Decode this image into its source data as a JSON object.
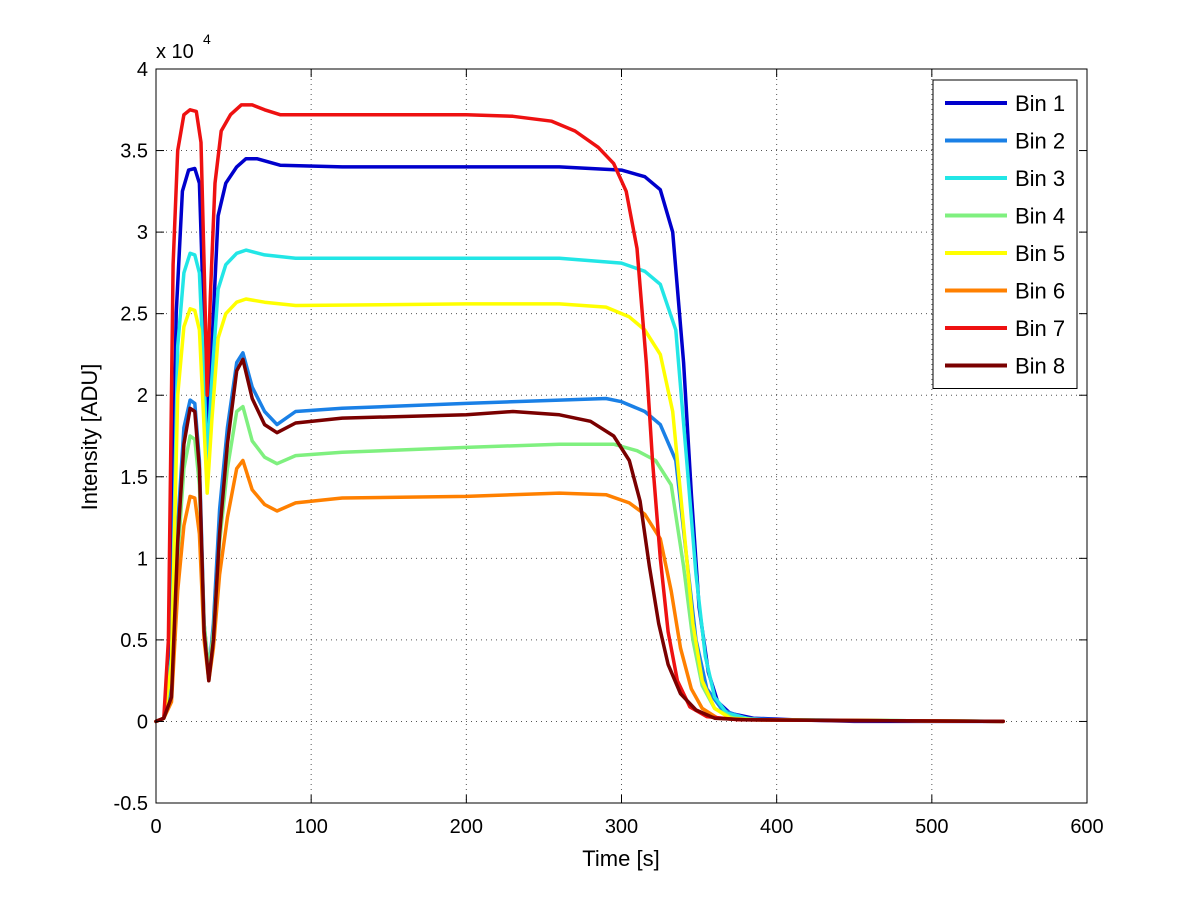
{
  "chart_data": {
    "type": "line",
    "title": "",
    "xlabel": "Time [s]",
    "ylabel": "Intensity [ADU]",
    "y_exponent_label": "x 10",
    "y_exponent_power": "4",
    "xlim": [
      0,
      600
    ],
    "ylim": [
      -0.5,
      4
    ],
    "xticks": [
      0,
      100,
      200,
      300,
      400,
      500,
      600
    ],
    "yticks": [
      -0.5,
      0,
      0.5,
      1,
      1.5,
      2,
      2.5,
      3,
      3.5,
      4
    ],
    "xtick_labels": [
      "0",
      "100",
      "200",
      "300",
      "400",
      "500",
      "600"
    ],
    "ytick_labels": [
      "-0.5",
      "0",
      "0.5",
      "1",
      "1.5",
      "2",
      "2.5",
      "3",
      "3.5",
      "4"
    ],
    "grid": true,
    "legend_position": "top-right",
    "series": [
      {
        "name": "Bin 1",
        "color": "#0000cc",
        "points": [
          [
            0,
            0
          ],
          [
            5,
            0.02
          ],
          [
            9,
            0.3
          ],
          [
            13,
            2.5
          ],
          [
            17,
            3.25
          ],
          [
            21,
            3.38
          ],
          [
            25,
            3.39
          ],
          [
            28,
            3.3
          ],
          [
            31,
            2.4
          ],
          [
            33,
            1.7
          ],
          [
            36,
            2.3
          ],
          [
            40,
            3.1
          ],
          [
            45,
            3.3
          ],
          [
            52,
            3.4
          ],
          [
            58,
            3.45
          ],
          [
            65,
            3.45
          ],
          [
            80,
            3.41
          ],
          [
            120,
            3.4
          ],
          [
            200,
            3.4
          ],
          [
            260,
            3.4
          ],
          [
            300,
            3.38
          ],
          [
            315,
            3.34
          ],
          [
            325,
            3.26
          ],
          [
            333,
            3.0
          ],
          [
            340,
            2.2
          ],
          [
            345,
            1.4
          ],
          [
            350,
            0.7
          ],
          [
            356,
            0.3
          ],
          [
            362,
            0.12
          ],
          [
            370,
            0.05
          ],
          [
            385,
            0.02
          ],
          [
            410,
            0.01
          ],
          [
            450,
            0
          ],
          [
            546,
            0
          ]
        ]
      },
      {
        "name": "Bin 2",
        "color": "#1a80e6",
        "points": [
          [
            0,
            0
          ],
          [
            5,
            0.02
          ],
          [
            10,
            0.2
          ],
          [
            14,
            1.2
          ],
          [
            18,
            1.8
          ],
          [
            22,
            1.97
          ],
          [
            25,
            1.95
          ],
          [
            28,
            1.6
          ],
          [
            31,
            0.6
          ],
          [
            34,
            0.3
          ],
          [
            37,
            0.6
          ],
          [
            41,
            1.3
          ],
          [
            46,
            1.8
          ],
          [
            52,
            2.2
          ],
          [
            56,
            2.26
          ],
          [
            62,
            2.05
          ],
          [
            70,
            1.9
          ],
          [
            78,
            1.82
          ],
          [
            90,
            1.9
          ],
          [
            120,
            1.92
          ],
          [
            200,
            1.95
          ],
          [
            260,
            1.97
          ],
          [
            290,
            1.98
          ],
          [
            300,
            1.96
          ],
          [
            315,
            1.9
          ],
          [
            325,
            1.82
          ],
          [
            335,
            1.6
          ],
          [
            342,
            1.0
          ],
          [
            348,
            0.5
          ],
          [
            355,
            0.2
          ],
          [
            365,
            0.07
          ],
          [
            380,
            0.02
          ],
          [
            400,
            0.01
          ],
          [
            546,
            0
          ]
        ]
      },
      {
        "name": "Bin 3",
        "color": "#22e6e6",
        "points": [
          [
            0,
            0
          ],
          [
            5,
            0.02
          ],
          [
            10,
            0.4
          ],
          [
            14,
            2.3
          ],
          [
            18,
            2.75
          ],
          [
            22,
            2.87
          ],
          [
            25,
            2.86
          ],
          [
            28,
            2.75
          ],
          [
            31,
            2.1
          ],
          [
            33,
            1.6
          ],
          [
            36,
            2.1
          ],
          [
            40,
            2.65
          ],
          [
            45,
            2.8
          ],
          [
            52,
            2.87
          ],
          [
            58,
            2.89
          ],
          [
            70,
            2.86
          ],
          [
            90,
            2.84
          ],
          [
            120,
            2.84
          ],
          [
            200,
            2.84
          ],
          [
            260,
            2.84
          ],
          [
            300,
            2.81
          ],
          [
            315,
            2.76
          ],
          [
            325,
            2.68
          ],
          [
            335,
            2.4
          ],
          [
            342,
            1.6
          ],
          [
            348,
            0.9
          ],
          [
            354,
            0.4
          ],
          [
            360,
            0.15
          ],
          [
            368,
            0.05
          ],
          [
            385,
            0.01
          ],
          [
            546,
            0
          ]
        ]
      },
      {
        "name": "Bin 4",
        "color": "#7ff07f",
        "points": [
          [
            0,
            0
          ],
          [
            5,
            0.02
          ],
          [
            10,
            0.15
          ],
          [
            14,
            1.0
          ],
          [
            18,
            1.55
          ],
          [
            22,
            1.75
          ],
          [
            25,
            1.73
          ],
          [
            28,
            1.45
          ],
          [
            31,
            0.6
          ],
          [
            34,
            0.3
          ],
          [
            37,
            0.55
          ],
          [
            41,
            1.1
          ],
          [
            46,
            1.55
          ],
          [
            52,
            1.9
          ],
          [
            56,
            1.93
          ],
          [
            62,
            1.72
          ],
          [
            70,
            1.62
          ],
          [
            78,
            1.58
          ],
          [
            90,
            1.63
          ],
          [
            120,
            1.65
          ],
          [
            200,
            1.68
          ],
          [
            260,
            1.7
          ],
          [
            295,
            1.7
          ],
          [
            310,
            1.66
          ],
          [
            322,
            1.6
          ],
          [
            332,
            1.45
          ],
          [
            340,
            0.95
          ],
          [
            346,
            0.5
          ],
          [
            352,
            0.22
          ],
          [
            360,
            0.08
          ],
          [
            372,
            0.02
          ],
          [
            390,
            0.01
          ],
          [
            546,
            0
          ]
        ]
      },
      {
        "name": "Bin 5",
        "color": "#ffff00",
        "points": [
          [
            0,
            0
          ],
          [
            5,
            0.02
          ],
          [
            10,
            0.35
          ],
          [
            14,
            2.0
          ],
          [
            18,
            2.42
          ],
          [
            22,
            2.53
          ],
          [
            25,
            2.52
          ],
          [
            28,
            2.4
          ],
          [
            31,
            1.8
          ],
          [
            33,
            1.4
          ],
          [
            36,
            1.85
          ],
          [
            40,
            2.35
          ],
          [
            45,
            2.5
          ],
          [
            52,
            2.57
          ],
          [
            58,
            2.59
          ],
          [
            70,
            2.57
          ],
          [
            90,
            2.55
          ],
          [
            200,
            2.56
          ],
          [
            260,
            2.56
          ],
          [
            290,
            2.54
          ],
          [
            305,
            2.48
          ],
          [
            315,
            2.4
          ],
          [
            325,
            2.25
          ],
          [
            333,
            1.9
          ],
          [
            340,
            1.2
          ],
          [
            346,
            0.6
          ],
          [
            352,
            0.25
          ],
          [
            360,
            0.08
          ],
          [
            370,
            0.02
          ],
          [
            385,
            0.01
          ],
          [
            546,
            0
          ]
        ]
      },
      {
        "name": "Bin 6",
        "color": "#ff8000",
        "points": [
          [
            0,
            0
          ],
          [
            5,
            0.02
          ],
          [
            10,
            0.12
          ],
          [
            14,
            0.8
          ],
          [
            18,
            1.2
          ],
          [
            22,
            1.38
          ],
          [
            25,
            1.37
          ],
          [
            28,
            1.15
          ],
          [
            31,
            0.5
          ],
          [
            34,
            0.25
          ],
          [
            37,
            0.45
          ],
          [
            41,
            0.9
          ],
          [
            46,
            1.25
          ],
          [
            52,
            1.55
          ],
          [
            56,
            1.6
          ],
          [
            62,
            1.42
          ],
          [
            70,
            1.33
          ],
          [
            78,
            1.29
          ],
          [
            90,
            1.34
          ],
          [
            120,
            1.37
          ],
          [
            200,
            1.38
          ],
          [
            260,
            1.4
          ],
          [
            290,
            1.39
          ],
          [
            305,
            1.34
          ],
          [
            315,
            1.27
          ],
          [
            325,
            1.12
          ],
          [
            332,
            0.8
          ],
          [
            338,
            0.45
          ],
          [
            345,
            0.2
          ],
          [
            352,
            0.08
          ],
          [
            362,
            0.02
          ],
          [
            380,
            0.01
          ],
          [
            546,
            0
          ]
        ]
      },
      {
        "name": "Bin 7",
        "color": "#ee1111",
        "points": [
          [
            0,
            0
          ],
          [
            5,
            0.02
          ],
          [
            8,
            0.5
          ],
          [
            11,
            2.8
          ],
          [
            14,
            3.5
          ],
          [
            18,
            3.72
          ],
          [
            22,
            3.75
          ],
          [
            26,
            3.74
          ],
          [
            29,
            3.55
          ],
          [
            31,
            2.8
          ],
          [
            33,
            2.0
          ],
          [
            35,
            2.6
          ],
          [
            38,
            3.3
          ],
          [
            42,
            3.62
          ],
          [
            48,
            3.72
          ],
          [
            55,
            3.78
          ],
          [
            62,
            3.78
          ],
          [
            70,
            3.75
          ],
          [
            80,
            3.72
          ],
          [
            120,
            3.72
          ],
          [
            200,
            3.72
          ],
          [
            230,
            3.71
          ],
          [
            255,
            3.68
          ],
          [
            270,
            3.62
          ],
          [
            285,
            3.52
          ],
          [
            295,
            3.42
          ],
          [
            303,
            3.25
          ],
          [
            310,
            2.9
          ],
          [
            316,
            2.2
          ],
          [
            320,
            1.6
          ],
          [
            325,
            1.0
          ],
          [
            330,
            0.55
          ],
          [
            336,
            0.25
          ],
          [
            344,
            0.09
          ],
          [
            355,
            0.03
          ],
          [
            375,
            0.01
          ],
          [
            546,
            0
          ]
        ]
      },
      {
        "name": "Bin 8",
        "color": "#7a0000",
        "points": [
          [
            0,
            0
          ],
          [
            5,
            0.02
          ],
          [
            10,
            0.15
          ],
          [
            14,
            1.1
          ],
          [
            18,
            1.7
          ],
          [
            22,
            1.92
          ],
          [
            25,
            1.9
          ],
          [
            28,
            1.55
          ],
          [
            31,
            0.55
          ],
          [
            34,
            0.25
          ],
          [
            37,
            0.5
          ],
          [
            41,
            1.15
          ],
          [
            46,
            1.7
          ],
          [
            52,
            2.15
          ],
          [
            56,
            2.22
          ],
          [
            62,
            1.98
          ],
          [
            70,
            1.82
          ],
          [
            78,
            1.77
          ],
          [
            90,
            1.83
          ],
          [
            120,
            1.86
          ],
          [
            200,
            1.88
          ],
          [
            230,
            1.9
          ],
          [
            260,
            1.88
          ],
          [
            280,
            1.84
          ],
          [
            295,
            1.75
          ],
          [
            305,
            1.6
          ],
          [
            312,
            1.35
          ],
          [
            318,
            0.95
          ],
          [
            324,
            0.6
          ],
          [
            330,
            0.35
          ],
          [
            338,
            0.17
          ],
          [
            348,
            0.07
          ],
          [
            360,
            0.02
          ],
          [
            380,
            0.01
          ],
          [
            546,
            0
          ]
        ]
      }
    ]
  }
}
